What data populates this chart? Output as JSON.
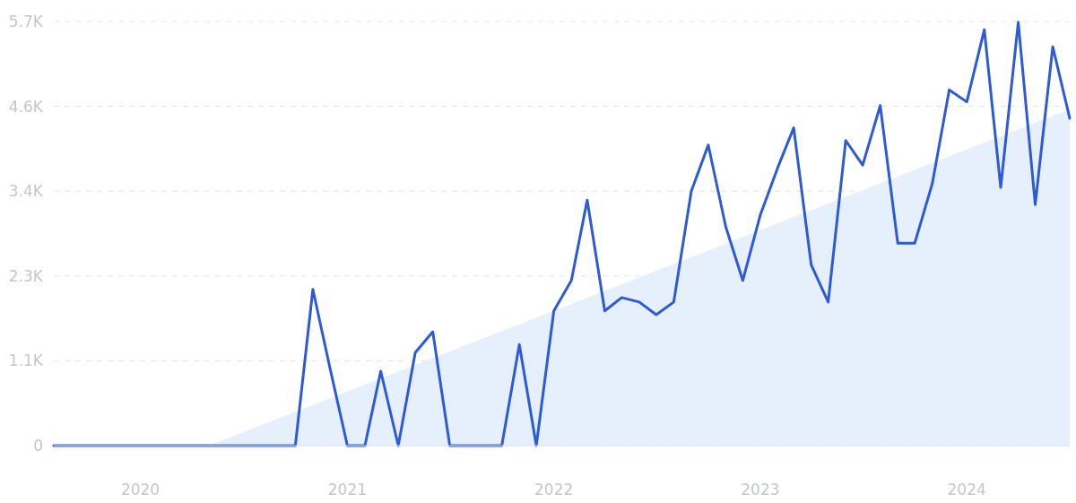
{
  "chart_data": {
    "type": "line",
    "x": [
      "2019-08",
      "2019-09",
      "2019-10",
      "2019-11",
      "2019-12",
      "2020-01",
      "2020-02",
      "2020-03",
      "2020-04",
      "2020-05",
      "2020-06",
      "2020-07",
      "2020-08",
      "2020-09",
      "2020-10",
      "2020-11",
      "2020-12",
      "2021-01",
      "2021-02",
      "2021-03",
      "2021-04",
      "2021-05",
      "2021-06",
      "2021-07",
      "2021-08",
      "2021-09",
      "2021-10",
      "2021-11",
      "2021-12",
      "2022-01",
      "2022-02",
      "2022-03",
      "2022-04",
      "2022-05",
      "2022-06",
      "2022-07",
      "2022-08",
      "2022-09",
      "2022-10",
      "2022-11",
      "2022-12",
      "2023-01",
      "2023-02",
      "2023-03",
      "2023-04",
      "2023-05",
      "2023-06",
      "2023-07",
      "2023-08",
      "2023-09",
      "2023-10",
      "2023-11",
      "2023-12",
      "2024-01",
      "2024-02",
      "2024-03",
      "2024-04",
      "2024-05",
      "2024-06",
      "2024-07"
    ],
    "series": [
      {
        "type": "area",
        "color": "#e6effc",
        "x": [
          "2020-05",
          "2024-07"
        ],
        "values": [
          0,
          4520
        ]
      },
      {
        "color": "#2d5bd6",
        "values": [
          0,
          0,
          0,
          0,
          0,
          0,
          0,
          0,
          0,
          0,
          0,
          0,
          0,
          0,
          0,
          2100,
          1050,
          0,
          0,
          1000,
          0,
          1250,
          1530,
          0,
          0,
          0,
          0,
          1360,
          0,
          1810,
          2220,
          3300,
          1810,
          1990,
          1930,
          1760,
          1930,
          3420,
          4040,
          2940,
          2220,
          3100,
          3740,
          4270,
          2430,
          1930,
          4100,
          3770,
          4570,
          2720,
          2720,
          3520,
          4780,
          4620,
          5590,
          3470,
          5690,
          3240,
          5360,
          4400
        ]
      }
    ],
    "xlim": [
      "2019-08",
      "2024-07"
    ],
    "xticks": [
      "2020",
      "2021",
      "2022",
      "2023",
      "2024"
    ],
    "ylim": [
      0,
      5700
    ],
    "yticks": [
      0,
      {
        "value": 1140,
        "label": "1.1K"
      },
      {
        "value": 2280,
        "label": "2.3K"
      },
      {
        "value": 3420,
        "label": "3.4K"
      },
      {
        "value": 4560,
        "label": "4.6K"
      },
      {
        "value": 5700,
        "label": "5.7K"
      }
    ],
    "grid": "y"
  }
}
